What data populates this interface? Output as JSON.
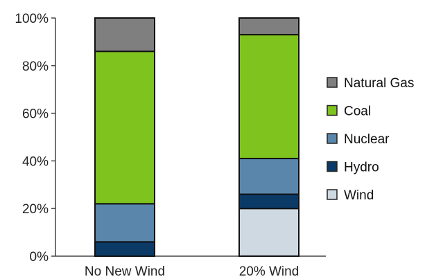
{
  "chart_data": {
    "type": "bar",
    "stacked": true,
    "categories": [
      "No New Wind",
      "20% Wind"
    ],
    "series": [
      {
        "name": "Wind",
        "color": "#cfd9e2",
        "values": [
          0,
          20
        ]
      },
      {
        "name": "Hydro",
        "color": "#0b3a67",
        "values": [
          6,
          6
        ]
      },
      {
        "name": "Nuclear",
        "color": "#5a86ab",
        "values": [
          16,
          15
        ]
      },
      {
        "name": "Coal",
        "color": "#7ec31e",
        "values": [
          64,
          52
        ]
      },
      {
        "name": "Natural Gas",
        "color": "#7f7f7f",
        "values": [
          14,
          7
        ]
      }
    ],
    "ylim": [
      0,
      100
    ],
    "yticks": [
      "0%",
      "20%",
      "40%",
      "60%",
      "80%",
      "100%"
    ],
    "grid": false,
    "legend_position": "right",
    "legend_order": [
      "Natural Gas",
      "Coal",
      "Nuclear",
      "Hydro",
      "Wind"
    ]
  }
}
